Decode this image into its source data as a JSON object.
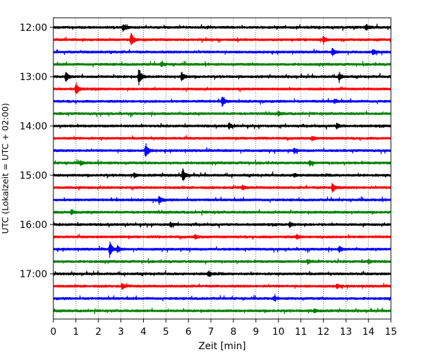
{
  "chart_data": {
    "type": "line",
    "title": "",
    "xlabel": "Zeit  [min]",
    "ylabel": "UTC (Lokalzeit = UTC + 02:00)",
    "xlim": [
      0,
      15
    ],
    "x_ticks": [
      0,
      1,
      2,
      3,
      4,
      5,
      6,
      7,
      8,
      9,
      10,
      11,
      12,
      13,
      14,
      15
    ],
    "x_tick_labels": [
      "0",
      "1",
      "2",
      "3",
      "4",
      "5",
      "6",
      "7",
      "8",
      "9",
      "10",
      "11",
      "12",
      "13",
      "14",
      "15"
    ],
    "y_tick_labels": [
      "12:00",
      "13:00",
      "14:00",
      "15:00",
      "16:00",
      "17:00"
    ],
    "y_tick_trace_index": [
      0,
      4,
      8,
      12,
      16,
      20
    ],
    "grid": "vertical-dotted",
    "trace_interval_minutes": 15,
    "trace_colors": [
      "#000000",
      "#ff0000",
      "#0000ff",
      "#008000"
    ],
    "traces": [
      {
        "start": "12:00",
        "events": [
          {
            "t": 3.1,
            "amp": 5
          },
          {
            "t": 13.9,
            "amp": 4
          }
        ]
      },
      {
        "start": "12:15",
        "events": [
          {
            "t": 3.45,
            "amp": 11
          },
          {
            "t": 12.0,
            "amp": 5
          }
        ]
      },
      {
        "start": "12:30",
        "events": [
          {
            "t": 12.4,
            "amp": 5
          },
          {
            "t": 14.2,
            "amp": 4
          }
        ]
      },
      {
        "start": "12:45",
        "events": [
          {
            "t": 4.8,
            "amp": 3
          }
        ]
      },
      {
        "start": "13:00",
        "events": [
          {
            "t": 0.55,
            "amp": 7
          },
          {
            "t": 3.8,
            "amp": 13
          },
          {
            "t": 5.7,
            "amp": 7
          },
          {
            "t": 12.7,
            "amp": 6
          }
        ]
      },
      {
        "start": "13:15",
        "events": [
          {
            "t": 1.0,
            "amp": 9
          }
        ]
      },
      {
        "start": "13:30",
        "events": [
          {
            "t": 7.5,
            "amp": 7
          },
          {
            "t": 12.5,
            "amp": 3
          }
        ]
      },
      {
        "start": "13:45",
        "events": [
          {
            "t": 10.0,
            "amp": 3
          }
        ]
      },
      {
        "start": "14:00",
        "events": [
          {
            "t": 7.8,
            "amp": 4
          },
          {
            "t": 12.6,
            "amp": 4
          }
        ]
      },
      {
        "start": "14:15",
        "events": [
          {
            "t": 11.5,
            "amp": 3
          }
        ]
      },
      {
        "start": "14:30",
        "events": [
          {
            "t": 4.1,
            "amp": 11
          },
          {
            "t": 10.7,
            "amp": 3
          }
        ]
      },
      {
        "start": "14:45",
        "events": [
          {
            "t": 11.4,
            "amp": 4
          },
          {
            "t": 1.2,
            "amp": 3
          }
        ]
      },
      {
        "start": "15:00",
        "events": [
          {
            "t": 5.75,
            "amp": 10
          },
          {
            "t": 3.6,
            "amp": 3
          },
          {
            "t": 10.7,
            "amp": 3
          }
        ]
      },
      {
        "start": "15:15",
        "events": [
          {
            "t": 12.4,
            "amp": 8
          },
          {
            "t": 8.4,
            "amp": 3
          }
        ]
      },
      {
        "start": "15:30",
        "events": [
          {
            "t": 4.7,
            "amp": 6
          }
        ]
      },
      {
        "start": "15:45",
        "events": [
          {
            "t": 0.8,
            "amp": 3
          }
        ]
      },
      {
        "start": "16:00",
        "events": [
          {
            "t": 10.5,
            "amp": 4
          },
          {
            "t": 5.2,
            "amp": 3
          }
        ]
      },
      {
        "start": "16:15",
        "events": [
          {
            "t": 6.3,
            "amp": 3
          },
          {
            "t": 10.8,
            "amp": 3
          }
        ]
      },
      {
        "start": "16:30",
        "events": [
          {
            "t": 2.5,
            "amp": 11
          },
          {
            "t": 2.85,
            "amp": 4
          },
          {
            "t": 12.7,
            "amp": 4
          }
        ]
      },
      {
        "start": "16:45",
        "events": [
          {
            "t": 11.3,
            "amp": 3
          },
          {
            "t": 14.0,
            "amp": 3
          }
        ]
      },
      {
        "start": "17:00",
        "events": [
          {
            "t": 6.9,
            "amp": 4
          }
        ]
      },
      {
        "start": "17:15",
        "events": [
          {
            "t": 3.05,
            "amp": 4
          },
          {
            "t": 12.6,
            "amp": 3
          }
        ]
      },
      {
        "start": "17:30",
        "events": [
          {
            "t": 9.8,
            "amp": 3
          }
        ]
      },
      {
        "start": "17:45",
        "events": [
          {
            "t": 11.6,
            "amp": 3
          }
        ]
      }
    ]
  }
}
